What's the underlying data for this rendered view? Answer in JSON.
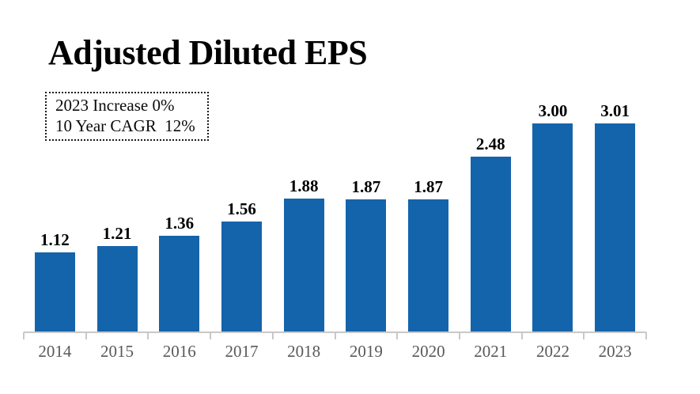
{
  "title": "Adjusted Diluted EPS",
  "annotation": {
    "line1": "2023 Increase 0%",
    "line2": "10 Year CAGR  12%"
  },
  "chart_data": {
    "type": "bar",
    "title": "Adjusted Diluted EPS",
    "categories": [
      "2014",
      "2015",
      "2016",
      "2017",
      "2018",
      "2019",
      "2020",
      "2021",
      "2022",
      "2023"
    ],
    "values": [
      1.12,
      1.21,
      1.36,
      1.56,
      1.88,
      1.87,
      1.87,
      2.48,
      3.0,
      3.01
    ],
    "value_labels": [
      "1.12",
      "1.21",
      "1.36",
      "1.56",
      "1.88",
      "1.87",
      "1.87",
      "2.48",
      "3.00",
      "3.01"
    ],
    "xlabel": "",
    "ylabel": "",
    "ylim": [
      0,
      3.25
    ],
    "grid": false,
    "legend": "none",
    "annotations": [
      "2023 Increase 0%",
      "10 Year CAGR  12%"
    ],
    "colors": {
      "bar": "#1464AB",
      "value_label": "#000000",
      "category_label": "#595959",
      "axis": "#C8C8C8",
      "title": "#000000",
      "background": "#FFFFFF"
    }
  }
}
